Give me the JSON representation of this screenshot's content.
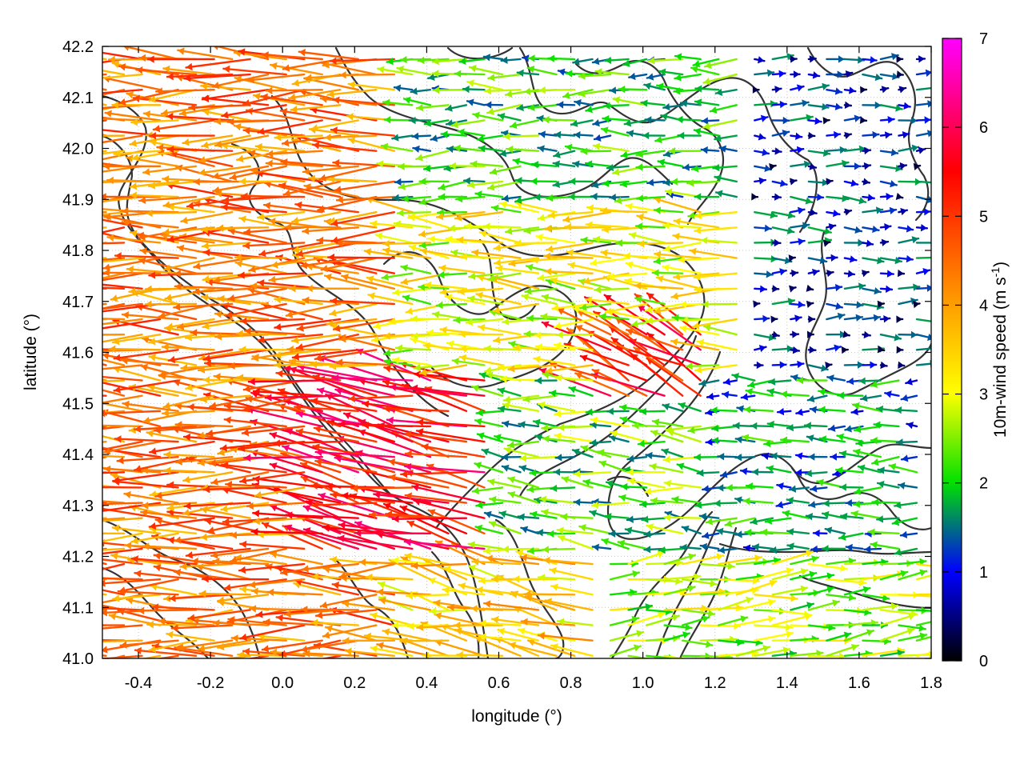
{
  "chart_data": {
    "type": "vector-field",
    "xlabel": "longitude (°)",
    "ylabel": "latitude (°)",
    "xlim": [
      -0.5,
      1.8
    ],
    "ylim": [
      41.0,
      42.2
    ],
    "xticks": [
      -0.4,
      -0.2,
      0.0,
      0.2,
      0.4,
      0.6,
      0.8,
      1.0,
      1.2,
      1.4,
      1.6,
      1.8
    ],
    "yticks": [
      41.0,
      41.1,
      41.2,
      41.3,
      41.4,
      41.5,
      41.6,
      41.7,
      41.8,
      41.9,
      42.0,
      42.1,
      42.2
    ],
    "grid": true,
    "colorbar": {
      "label": "10m-wind speed (m s",
      "label_sup": "-1",
      "label_end": ")",
      "range": [
        0,
        7
      ],
      "ticks": [
        0,
        1,
        2,
        3,
        4,
        5,
        6,
        7
      ],
      "colors": [
        "#000000",
        "#0000ff",
        "#00e000",
        "#ffff00",
        "#ffa000",
        "#ff0000",
        "#ff00ff"
      ]
    },
    "wind_regions": [
      {
        "lon": [
          -0.5,
          0.35
        ],
        "lat": [
          41.0,
          42.2
        ],
        "u": -4.2,
        "v": 0.05,
        "speed": 4.4
      },
      {
        "lon": [
          0.35,
          0.9
        ],
        "lat": [
          41.0,
          41.2
        ],
        "u": -2.5,
        "v": 0.5,
        "speed": 3.5
      },
      {
        "lon": [
          0.1,
          0.6
        ],
        "lat": [
          41.2,
          41.55
        ],
        "u": -4.5,
        "v": 0.9,
        "speed": 5.5
      },
      {
        "lon": [
          0.35,
          1.3
        ],
        "lat": [
          41.55,
          41.9
        ],
        "u": -3.2,
        "v": 0.15,
        "speed": 3.0
      },
      {
        "lon": [
          0.35,
          1.3
        ],
        "lat": [
          41.9,
          42.2
        ],
        "u": -1.8,
        "v": 0.0,
        "speed": 2.0
      },
      {
        "lon": [
          0.6,
          1.2
        ],
        "lat": [
          41.2,
          41.55
        ],
        "u": -2.0,
        "v": 0.2,
        "speed": 2.2
      },
      {
        "lon": [
          0.9,
          1.2
        ],
        "lat": [
          41.5,
          41.65
        ],
        "u": -2.2,
        "v": 1.2,
        "speed": 5.2
      },
      {
        "lon": [
          1.3,
          1.8
        ],
        "lat": [
          41.55,
          42.2
        ],
        "u": 0.8,
        "v": 0.0,
        "speed": 1.0
      },
      {
        "lon": [
          1.2,
          1.8
        ],
        "lat": [
          41.2,
          41.55
        ],
        "u": -1.5,
        "v": 0.0,
        "speed": 1.6
      },
      {
        "lon": [
          0.9,
          1.8
        ],
        "lat": [
          41.0,
          41.2
        ],
        "u": 2.2,
        "v": 0.2,
        "speed": 2.6
      }
    ]
  }
}
